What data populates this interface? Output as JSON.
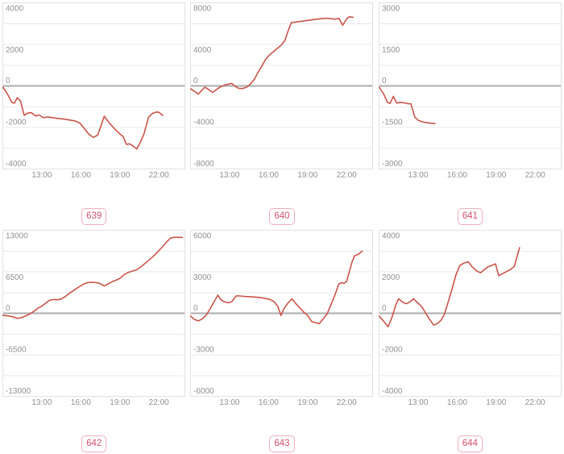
{
  "styles": {
    "line_color": "#cb544a",
    "grid_color": "#e9e9e9",
    "zero_line_color": "#ababab",
    "border_color": "#e1e1e1",
    "tick_color": "#919191",
    "badge_text_color": "#d5506a",
    "badge_border_color": "#eeafbb",
    "background": "#ffffff"
  },
  "x_axis": {
    "domain_hours": [
      10,
      24
    ],
    "ticks": [
      {
        "hour": 13,
        "label": "13:00"
      },
      {
        "hour": 16,
        "label": "16:00"
      },
      {
        "hour": 19,
        "label": "19:00"
      },
      {
        "hour": 22,
        "label": "22:00"
      }
    ]
  },
  "chart_data": [
    {
      "type": "line",
      "badge_label": "639",
      "ylim": [
        -4000,
        4000
      ],
      "ytick_labels": [
        "4000",
        "2000",
        "0",
        "-2000",
        "-4000"
      ],
      "grid": true,
      "legend": "none",
      "series": [
        {
          "name": "value",
          "points": [
            [
              10.0,
              -60
            ],
            [
              10.35,
              -380
            ],
            [
              10.7,
              -800
            ],
            [
              10.9,
              -830
            ],
            [
              11.1,
              -570
            ],
            [
              11.35,
              -720
            ],
            [
              11.65,
              -1420
            ],
            [
              11.9,
              -1310
            ],
            [
              12.2,
              -1290
            ],
            [
              12.5,
              -1450
            ],
            [
              12.8,
              -1400
            ],
            [
              13.1,
              -1530
            ],
            [
              13.5,
              -1500
            ],
            [
              13.9,
              -1540
            ],
            [
              14.3,
              -1570
            ],
            [
              14.7,
              -1600
            ],
            [
              15.1,
              -1640
            ],
            [
              15.5,
              -1680
            ],
            [
              15.9,
              -1780
            ],
            [
              16.2,
              -2000
            ],
            [
              16.6,
              -2320
            ],
            [
              16.95,
              -2480
            ],
            [
              17.3,
              -2370
            ],
            [
              17.8,
              -1460
            ],
            [
              18.2,
              -1800
            ],
            [
              18.6,
              -2070
            ],
            [
              19.0,
              -2320
            ],
            [
              19.25,
              -2440
            ],
            [
              19.5,
              -2820
            ],
            [
              19.75,
              -2790
            ],
            [
              20.0,
              -2890
            ],
            [
              20.3,
              -3040
            ],
            [
              20.6,
              -2680
            ],
            [
              20.85,
              -2320
            ],
            [
              21.2,
              -1520
            ],
            [
              21.5,
              -1330
            ],
            [
              21.8,
              -1260
            ],
            [
              22.0,
              -1270
            ],
            [
              22.3,
              -1420
            ]
          ]
        }
      ]
    },
    {
      "type": "line",
      "badge_label": "640",
      "ylim": [
        -8000,
        8000
      ],
      "ytick_labels": [
        "8000",
        "4000",
        "0",
        "-4000",
        "-8000"
      ],
      "grid": true,
      "legend": "none",
      "series": [
        {
          "name": "value",
          "points": [
            [
              10.0,
              -280
            ],
            [
              10.3,
              -520
            ],
            [
              10.6,
              -790
            ],
            [
              10.9,
              -380
            ],
            [
              11.1,
              -130
            ],
            [
              11.4,
              -360
            ],
            [
              11.7,
              -630
            ],
            [
              12.0,
              -340
            ],
            [
              12.3,
              -90
            ],
            [
              12.6,
              60
            ],
            [
              12.9,
              170
            ],
            [
              13.15,
              240
            ],
            [
              13.45,
              -60
            ],
            [
              13.7,
              -230
            ],
            [
              14.0,
              -260
            ],
            [
              14.3,
              -130
            ],
            [
              14.6,
              180
            ],
            [
              14.9,
              620
            ],
            [
              15.2,
              1320
            ],
            [
              15.5,
              1950
            ],
            [
              15.8,
              2620
            ],
            [
              16.05,
              2950
            ],
            [
              16.35,
              3280
            ],
            [
              16.65,
              3580
            ],
            [
              16.95,
              3900
            ],
            [
              17.25,
              4350
            ],
            [
              17.5,
              5300
            ],
            [
              17.75,
              6100
            ],
            [
              18.1,
              6150
            ],
            [
              18.5,
              6220
            ],
            [
              18.9,
              6280
            ],
            [
              19.3,
              6350
            ],
            [
              19.7,
              6420
            ],
            [
              20.1,
              6480
            ],
            [
              20.5,
              6520
            ],
            [
              20.8,
              6470
            ],
            [
              21.1,
              6430
            ],
            [
              21.4,
              6500
            ],
            [
              21.7,
              5850
            ],
            [
              22.0,
              6450
            ],
            [
              22.2,
              6660
            ],
            [
              22.5,
              6600
            ]
          ]
        }
      ]
    },
    {
      "type": "line",
      "badge_label": "641",
      "ylim": [
        -3000,
        3000
      ],
      "ytick_labels": [
        "3000",
        "1500",
        "0",
        "-1500",
        "-3000"
      ],
      "grid": true,
      "legend": "none",
      "series": [
        {
          "name": "value",
          "points": [
            [
              10.0,
              -40
            ],
            [
              10.35,
              -290
            ],
            [
              10.65,
              -600
            ],
            [
              10.85,
              -630
            ],
            [
              11.1,
              -380
            ],
            [
              11.35,
              -620
            ],
            [
              11.6,
              -600
            ],
            [
              11.9,
              -610
            ],
            [
              12.2,
              -640
            ],
            [
              12.45,
              -650
            ],
            [
              12.75,
              -1130
            ],
            [
              13.0,
              -1240
            ],
            [
              13.35,
              -1300
            ],
            [
              13.7,
              -1330
            ],
            [
              14.0,
              -1350
            ],
            [
              14.3,
              -1360
            ]
          ]
        }
      ]
    },
    {
      "type": "line",
      "badge_label": "642",
      "ylim": [
        -13000,
        13000
      ],
      "ytick_labels": [
        "13000",
        "6500",
        "0",
        "-6500",
        "-13000"
      ],
      "grid": true,
      "legend": "none",
      "series": [
        {
          "name": "value",
          "points": [
            [
              10.0,
              -300
            ],
            [
              10.4,
              -420
            ],
            [
              10.8,
              -560
            ],
            [
              11.1,
              -800
            ],
            [
              11.4,
              -690
            ],
            [
              11.8,
              -380
            ],
            [
              12.1,
              -80
            ],
            [
              12.4,
              320
            ],
            [
              12.7,
              790
            ],
            [
              13.0,
              1120
            ],
            [
              13.3,
              1620
            ],
            [
              13.6,
              2050
            ],
            [
              13.9,
              2160
            ],
            [
              14.2,
              2120
            ],
            [
              14.5,
              2230
            ],
            [
              14.8,
              2620
            ],
            [
              15.1,
              3100
            ],
            [
              15.4,
              3520
            ],
            [
              15.7,
              3930
            ],
            [
              16.0,
              4320
            ],
            [
              16.3,
              4660
            ],
            [
              16.6,
              4820
            ],
            [
              16.9,
              4860
            ],
            [
              17.2,
              4800
            ],
            [
              17.5,
              4640
            ],
            [
              17.8,
              4260
            ],
            [
              18.1,
              4620
            ],
            [
              18.4,
              4930
            ],
            [
              18.7,
              5170
            ],
            [
              19.0,
              5470
            ],
            [
              19.3,
              6000
            ],
            [
              19.6,
              6380
            ],
            [
              19.9,
              6560
            ],
            [
              20.3,
              6820
            ],
            [
              20.7,
              7400
            ],
            [
              21.1,
              8100
            ],
            [
              21.5,
              8800
            ],
            [
              21.9,
              9580
            ],
            [
              22.3,
              10480
            ],
            [
              22.6,
              11180
            ],
            [
              22.9,
              11780
            ],
            [
              23.2,
              11900
            ],
            [
              23.5,
              11890
            ],
            [
              23.8,
              11890
            ]
          ]
        }
      ]
    },
    {
      "type": "line",
      "badge_label": "643",
      "ylim": [
        -6000,
        6000
      ],
      "ytick_labels": [
        "6000",
        "3000",
        "0",
        "-3000",
        "-6000"
      ],
      "grid": true,
      "legend": "none",
      "series": [
        {
          "name": "value",
          "points": [
            [
              10.0,
              -200
            ],
            [
              10.3,
              -440
            ],
            [
              10.6,
              -550
            ],
            [
              10.9,
              -400
            ],
            [
              11.2,
              -140
            ],
            [
              11.5,
              320
            ],
            [
              11.8,
              820
            ],
            [
              12.1,
              1310
            ],
            [
              12.35,
              960
            ],
            [
              12.65,
              810
            ],
            [
              12.95,
              760
            ],
            [
              13.2,
              860
            ],
            [
              13.5,
              1260
            ],
            [
              13.8,
              1250
            ],
            [
              14.2,
              1210
            ],
            [
              14.6,
              1200
            ],
            [
              15.0,
              1170
            ],
            [
              15.4,
              1130
            ],
            [
              15.8,
              1060
            ],
            [
              16.1,
              1000
            ],
            [
              16.4,
              860
            ],
            [
              16.7,
              520
            ],
            [
              16.95,
              -160
            ],
            [
              17.2,
              360
            ],
            [
              17.5,
              760
            ],
            [
              17.8,
              1040
            ],
            [
              18.1,
              690
            ],
            [
              18.4,
              390
            ],
            [
              18.7,
              90
            ],
            [
              19.0,
              -160
            ],
            [
              19.3,
              -590
            ],
            [
              19.6,
              -670
            ],
            [
              19.9,
              -750
            ],
            [
              20.2,
              -390
            ],
            [
              20.5,
              -40
            ],
            [
              20.8,
              620
            ],
            [
              21.1,
              1320
            ],
            [
              21.4,
              2120
            ],
            [
              21.6,
              2210
            ],
            [
              21.8,
              2160
            ],
            [
              22.0,
              2300
            ],
            [
              22.2,
              2960
            ],
            [
              22.4,
              3660
            ],
            [
              22.6,
              4140
            ],
            [
              22.9,
              4260
            ],
            [
              23.2,
              4490
            ]
          ]
        }
      ]
    },
    {
      "type": "line",
      "badge_label": "644",
      "ylim": [
        -4000,
        4000
      ],
      "ytick_labels": [
        "4000",
        "2000",
        "0",
        "-2000",
        "-4000"
      ],
      "grid": true,
      "legend": "none",
      "series": [
        {
          "name": "value",
          "points": [
            [
              10.0,
              -140
            ],
            [
              10.3,
              -340
            ],
            [
              10.7,
              -650
            ],
            [
              11.0,
              -180
            ],
            [
              11.3,
              430
            ],
            [
              11.5,
              700
            ],
            [
              11.8,
              540
            ],
            [
              12.1,
              460
            ],
            [
              12.4,
              560
            ],
            [
              12.65,
              700
            ],
            [
              12.95,
              510
            ],
            [
              13.25,
              340
            ],
            [
              13.55,
              40
            ],
            [
              13.85,
              -260
            ],
            [
              14.2,
              -570
            ],
            [
              14.5,
              -490
            ],
            [
              14.75,
              -340
            ],
            [
              15.0,
              -80
            ],
            [
              15.3,
              520
            ],
            [
              15.6,
              1150
            ],
            [
              15.9,
              1820
            ],
            [
              16.2,
              2300
            ],
            [
              16.5,
              2410
            ],
            [
              16.85,
              2480
            ],
            [
              17.15,
              2240
            ],
            [
              17.5,
              2040
            ],
            [
              17.8,
              1950
            ],
            [
              18.1,
              2110
            ],
            [
              18.4,
              2250
            ],
            [
              18.7,
              2310
            ],
            [
              18.95,
              2380
            ],
            [
              19.2,
              1810
            ],
            [
              19.5,
              1910
            ],
            [
              19.8,
              2010
            ],
            [
              20.1,
              2110
            ],
            [
              20.4,
              2260
            ],
            [
              20.8,
              3160
            ]
          ]
        }
      ]
    }
  ]
}
